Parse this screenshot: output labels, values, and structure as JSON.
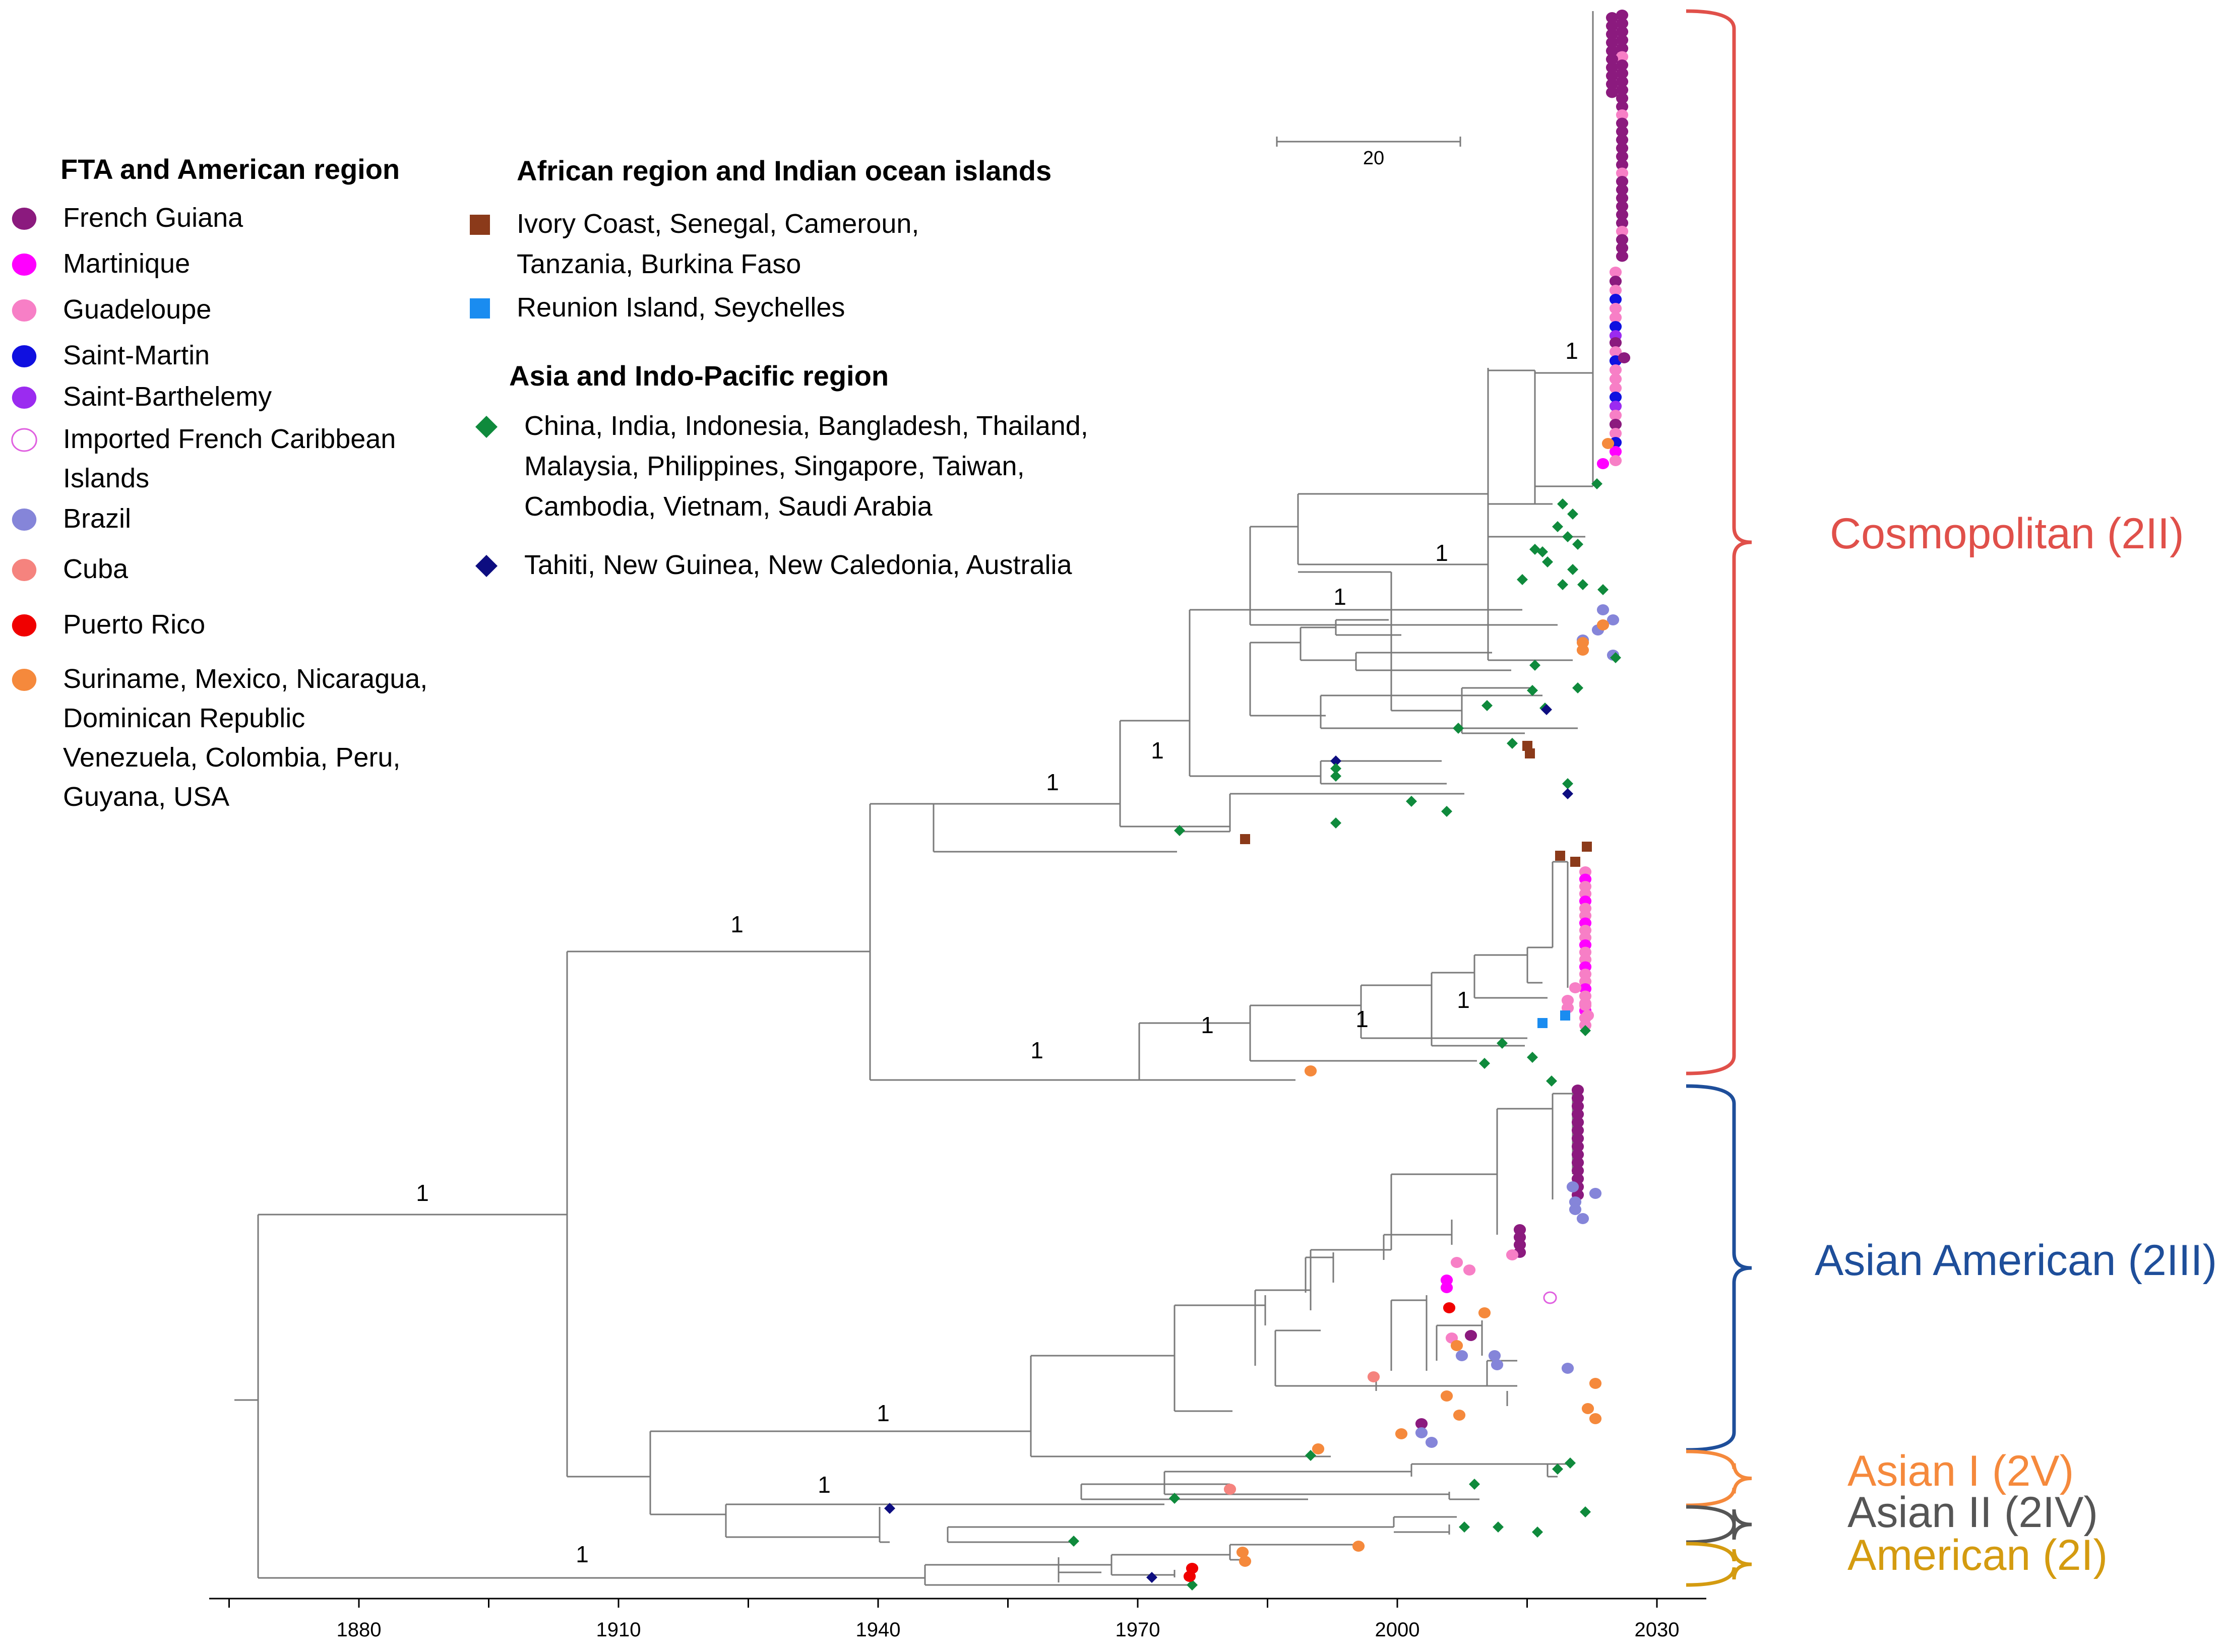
{
  "colors": {
    "french_guiana": "#8B1A7E",
    "martinique": "#FF00FF",
    "guadeloupe": "#F77FC6",
    "saint_martin": "#1010E0",
    "saint_barthelemy": "#9B2BF0",
    "imported_fci": "#E060E0",
    "brazil": "#8585D9",
    "cuba": "#F5837E",
    "puerto_rico": "#F00000",
    "americas_other": "#F5893C",
    "africa": "#8B3A1A",
    "reunion": "#1A8CF0",
    "asia": "#0F8A3C",
    "pacific": "#0D0D80",
    "cosmopolitan": "#E0504A",
    "asian_american": "#1E4E9A",
    "asian_i": "#F5893C",
    "asian_ii": "#555555",
    "american": "#D49B10"
  },
  "legend": {
    "left_heading": "FTA and American region",
    "left_items": [
      {
        "label_lines": [
          "French Guiana"
        ],
        "color_key": "french_guiana",
        "shape": "circle"
      },
      {
        "label_lines": [
          "Martinique"
        ],
        "color_key": "martinique",
        "shape": "circle"
      },
      {
        "label_lines": [
          "Guadeloupe"
        ],
        "color_key": "guadeloupe",
        "shape": "circle"
      },
      {
        "label_lines": [
          "Saint-Martin"
        ],
        "color_key": "saint_martin",
        "shape": "circle"
      },
      {
        "label_lines": [
          "Saint-Barthelemy"
        ],
        "color_key": "saint_barthelemy",
        "shape": "circle"
      },
      {
        "label_lines": [
          "Imported French Caribbean",
          "Islands"
        ],
        "color_key": "imported_fci",
        "shape": "open-circle"
      },
      {
        "label_lines": [
          "Brazil"
        ],
        "color_key": "brazil",
        "shape": "circle"
      },
      {
        "label_lines": [
          "Cuba"
        ],
        "color_key": "cuba",
        "shape": "circle"
      },
      {
        "label_lines": [
          "Puerto Rico"
        ],
        "color_key": "puerto_rico",
        "shape": "circle"
      },
      {
        "label_lines": [
          "Suriname, Mexico, Nicaragua,",
          "Dominican Republic",
          "Venezuela,  Colombia, Peru,",
          "Guyana, USA"
        ],
        "color_key": "americas_other",
        "shape": "circle"
      }
    ],
    "africa_heading": "African region and Indian ocean islands",
    "africa_items": [
      {
        "label_lines": [
          "Ivory Coast, Senegal, Cameroun,",
          "Tanzania, Burkina Faso"
        ],
        "color_key": "africa",
        "shape": "square"
      },
      {
        "label_lines": [
          "Reunion Island, Seychelles"
        ],
        "color_key": "reunion",
        "shape": "square"
      }
    ],
    "asia_heading": "Asia and Indo-Pacific region",
    "asia_items": [
      {
        "label_lines": [
          "China,   India,   Indonesia,   Bangladesh,   Thailand,",
          "Malaysia,      Philippines,      Singapore,      Taiwan,",
          "Cambodia, Vietnam, Saudi Arabia"
        ],
        "color_key": "asia",
        "shape": "diamond"
      },
      {
        "label_lines": [
          "Tahiti, New Guinea, New Caledonia, Australia"
        ],
        "color_key": "pacific",
        "shape": "diamond"
      }
    ]
  },
  "scale_bar": {
    "label": "20"
  },
  "axis": {
    "ticks": [
      "1880",
      "1910",
      "1940",
      "1970",
      "2000",
      "2030"
    ]
  },
  "support_values": [
    "1",
    "1",
    "1",
    "1",
    "1",
    "1",
    "1",
    "1",
    "1",
    "1",
    "1",
    "1",
    "1",
    "1"
  ],
  "clades": [
    {
      "name": "Cosmopolitan (2II)",
      "color_key": "cosmopolitan"
    },
    {
      "name": "Asian American (2III)",
      "color_key": "asian_american"
    },
    {
      "name": "Asian I (2V)",
      "color_key": "asian_i"
    },
    {
      "name": "Asian II (2IV)",
      "color_key": "asian_ii"
    },
    {
      "name": "American (2I)",
      "color_key": "american"
    }
  ]
}
